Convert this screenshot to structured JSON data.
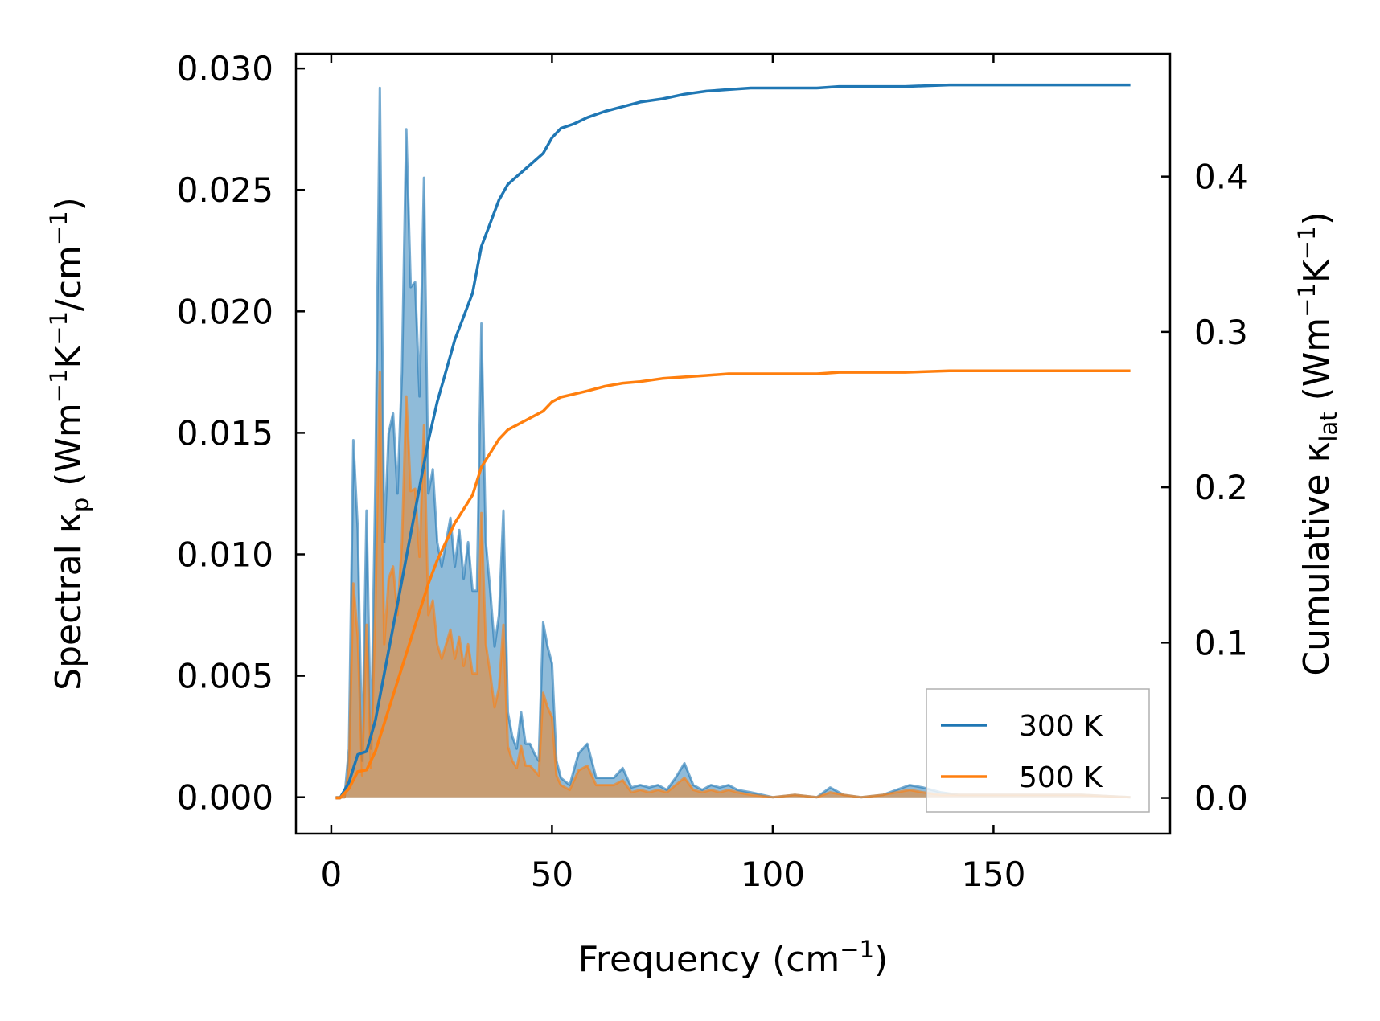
{
  "chart_data": {
    "type": "line",
    "x_axis": {
      "label_main": "Frequency (cm",
      "label_sup": "−1",
      "label_end": ")",
      "range": [
        -8,
        190
      ],
      "ticks": [
        0,
        50,
        100,
        150
      ],
      "tick_labels": [
        "0",
        "50",
        "100",
        "150"
      ]
    },
    "y_left": {
      "label_parts": [
        {
          "t": "Spectral κ"
        },
        {
          "t": "p",
          "sub": true
        },
        {
          "t": " (Wm"
        },
        {
          "t": "−1",
          "sup": true
        },
        {
          "t": "K"
        },
        {
          "t": "−1",
          "sup": true
        },
        {
          "t": "/cm"
        },
        {
          "t": "−1",
          "sup": true
        },
        {
          "t": ")"
        }
      ],
      "range": [
        -0.0015,
        0.0306
      ],
      "ticks": [
        0.0,
        0.005,
        0.01,
        0.015,
        0.02,
        0.025,
        0.03
      ],
      "tick_labels": [
        "0.000",
        "0.005",
        "0.010",
        "0.015",
        "0.020",
        "0.025",
        "0.030"
      ]
    },
    "y_right": {
      "label_parts": [
        {
          "t": "Cumulative κ"
        },
        {
          "t": "lat",
          "sub": true
        },
        {
          "t": " (Wm"
        },
        {
          "t": "−1",
          "sup": true
        },
        {
          "t": "K"
        },
        {
          "t": "−1",
          "sup": true
        },
        {
          "t": ")"
        }
      ],
      "range": [
        -0.023,
        0.479
      ],
      "ticks": [
        0.0,
        0.1,
        0.2,
        0.3,
        0.4
      ],
      "tick_labels": [
        "0.0",
        "0.1",
        "0.2",
        "0.3",
        "0.4"
      ]
    },
    "legend": {
      "position": "bottom-right",
      "entries": [
        {
          "label": "300 K",
          "color": "#1f77b4"
        },
        {
          "label": "500 K",
          "color": "#ff7f0e"
        }
      ]
    },
    "series": [
      {
        "name": "300 K",
        "color": "#1f77b4",
        "fill_color": "#1f77b4",
        "spectral": {
          "x": [
            1,
            2,
            3,
            4,
            5,
            6,
            7,
            8,
            9,
            10,
            11,
            12,
            13,
            14,
            15,
            16,
            17,
            18,
            19,
            20,
            21,
            22,
            23,
            24,
            25,
            26,
            27,
            28,
            29,
            30,
            31,
            32,
            33,
            34,
            35,
            36,
            37,
            38,
            39,
            40,
            41,
            42,
            43,
            44,
            45,
            46,
            47,
            48,
            49,
            50,
            51,
            52,
            54,
            56,
            58,
            60,
            62,
            64,
            66,
            68,
            70,
            72,
            74,
            76,
            78,
            80,
            82,
            84,
            86,
            88,
            90,
            92,
            95,
            100,
            105,
            110,
            113,
            116,
            120,
            125,
            128,
            131,
            134,
            138,
            142,
            146,
            150,
            160,
            170,
            181
          ],
          "y": [
            0.0,
            0.0,
            0.0,
            0.002,
            0.0147,
            0.011,
            0.0015,
            0.0118,
            0.002,
            0.013,
            0.0292,
            0.0105,
            0.015,
            0.0158,
            0.0125,
            0.0175,
            0.0275,
            0.021,
            0.0212,
            0.0165,
            0.0255,
            0.0125,
            0.0135,
            0.0105,
            0.0095,
            0.0105,
            0.0115,
            0.0095,
            0.011,
            0.009,
            0.0105,
            0.0085,
            0.0085,
            0.0195,
            0.0105,
            0.0085,
            0.0062,
            0.0075,
            0.0118,
            0.0035,
            0.0025,
            0.002,
            0.0035,
            0.0022,
            0.0022,
            0.0018,
            0.0015,
            0.0072,
            0.0062,
            0.0055,
            0.0015,
            0.0008,
            0.0005,
            0.0018,
            0.0022,
            0.0008,
            0.0008,
            0.0008,
            0.0012,
            0.0004,
            0.0005,
            0.0004,
            0.0005,
            0.0003,
            0.0008,
            0.0014,
            0.0005,
            0.0003,
            0.0005,
            0.0004,
            0.0005,
            0.0003,
            0.0002,
            0.0,
            0.0001,
            0.0,
            0.0004,
            0.0001,
            0.0,
            0.0001,
            0.0003,
            0.0005,
            0.0004,
            0.0002,
            0.0001,
            0.0001,
            0.0001,
            0.0001,
            0.0001,
            0.0
          ]
        },
        "cumulative": {
          "x": [
            1,
            2,
            4,
            6,
            8,
            10,
            12,
            14,
            16,
            18,
            20,
            22,
            24,
            26,
            28,
            30,
            32,
            33,
            34,
            36,
            38,
            39,
            40,
            42,
            44,
            46,
            48,
            50,
            52,
            55,
            58,
            62,
            66,
            70,
            75,
            80,
            85,
            90,
            95,
            100,
            110,
            115,
            120,
            130,
            140,
            150,
            160,
            170,
            181
          ],
          "y": [
            0.0,
            0.0,
            0.01,
            0.028,
            0.03,
            0.05,
            0.08,
            0.11,
            0.14,
            0.17,
            0.2,
            0.23,
            0.255,
            0.275,
            0.295,
            0.31,
            0.325,
            0.34,
            0.355,
            0.37,
            0.385,
            0.39,
            0.395,
            0.4,
            0.405,
            0.41,
            0.415,
            0.425,
            0.431,
            0.434,
            0.438,
            0.442,
            0.445,
            0.448,
            0.45,
            0.453,
            0.455,
            0.456,
            0.457,
            0.457,
            0.457,
            0.458,
            0.458,
            0.458,
            0.459,
            0.459,
            0.459,
            0.459,
            0.459
          ]
        }
      },
      {
        "name": "500 K",
        "color": "#ff7f0e",
        "fill_color": "#ff7f0e",
        "spectral": {
          "x": [
            1,
            2,
            3,
            4,
            5,
            6,
            7,
            8,
            9,
            10,
            11,
            12,
            13,
            14,
            15,
            16,
            17,
            18,
            19,
            20,
            21,
            22,
            23,
            24,
            25,
            26,
            27,
            28,
            29,
            30,
            31,
            32,
            33,
            34,
            35,
            36,
            37,
            38,
            39,
            40,
            41,
            42,
            43,
            44,
            45,
            46,
            47,
            48,
            49,
            50,
            51,
            52,
            54,
            56,
            58,
            60,
            62,
            64,
            66,
            68,
            70,
            72,
            74,
            76,
            78,
            80,
            82,
            84,
            86,
            88,
            90,
            92,
            95,
            100,
            105,
            110,
            113,
            116,
            120,
            125,
            128,
            131,
            134,
            138,
            142,
            146,
            150,
            160,
            170,
            181
          ],
          "y": [
            0.0,
            0.0,
            0.0,
            0.0012,
            0.0088,
            0.0066,
            0.0009,
            0.0071,
            0.0012,
            0.0078,
            0.0175,
            0.0063,
            0.009,
            0.0095,
            0.0075,
            0.0105,
            0.0165,
            0.0126,
            0.0127,
            0.0099,
            0.0153,
            0.0075,
            0.0081,
            0.0063,
            0.0057,
            0.0063,
            0.0069,
            0.0057,
            0.0066,
            0.0054,
            0.0063,
            0.0051,
            0.0051,
            0.0117,
            0.0063,
            0.0051,
            0.0037,
            0.0045,
            0.0071,
            0.0021,
            0.0015,
            0.0012,
            0.0021,
            0.0013,
            0.0013,
            0.0011,
            0.0009,
            0.0043,
            0.0037,
            0.0033,
            0.0009,
            0.0005,
            0.0003,
            0.0011,
            0.0013,
            0.0005,
            0.0005,
            0.0005,
            0.0007,
            0.0002,
            0.0003,
            0.0002,
            0.0003,
            0.0002,
            0.0005,
            0.0008,
            0.0003,
            0.0002,
            0.0003,
            0.0002,
            0.0003,
            0.0002,
            0.0001,
            0.0,
            0.0001,
            0.0,
            0.0002,
            0.0001,
            0.0,
            0.0001,
            0.0002,
            0.0003,
            0.0002,
            0.0001,
            0.0001,
            0.0001,
            0.0001,
            0.0001,
            0.0001,
            0.0
          ]
        },
        "cumulative": {
          "x": [
            1,
            2,
            4,
            6,
            8,
            10,
            12,
            14,
            16,
            18,
            20,
            22,
            24,
            26,
            28,
            30,
            32,
            33,
            34,
            36,
            38,
            39,
            40,
            42,
            44,
            46,
            48,
            50,
            52,
            55,
            58,
            62,
            66,
            70,
            75,
            80,
            85,
            90,
            95,
            100,
            110,
            115,
            120,
            130,
            140,
            150,
            160,
            170,
            181
          ],
          "y": [
            0.0,
            0.0,
            0.006,
            0.017,
            0.018,
            0.03,
            0.048,
            0.066,
            0.084,
            0.102,
            0.12,
            0.138,
            0.153,
            0.165,
            0.177,
            0.186,
            0.195,
            0.204,
            0.213,
            0.222,
            0.231,
            0.234,
            0.237,
            0.24,
            0.243,
            0.246,
            0.249,
            0.255,
            0.258,
            0.26,
            0.262,
            0.265,
            0.267,
            0.268,
            0.27,
            0.271,
            0.272,
            0.273,
            0.273,
            0.273,
            0.273,
            0.274,
            0.274,
            0.274,
            0.275,
            0.275,
            0.275,
            0.275,
            0.275
          ]
        }
      }
    ]
  }
}
